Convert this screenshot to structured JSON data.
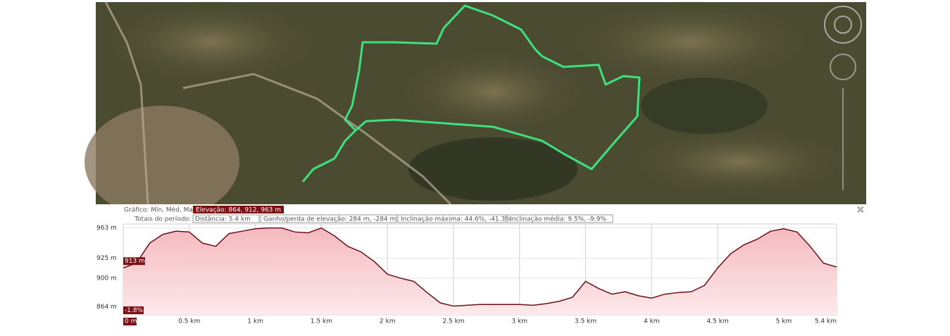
{
  "panel": {
    "chart_mode": "Gráfico: Mín, Méd, Max",
    "elevation": "Elevação: 864, 912, 963 m",
    "totals": "Totais do período:",
    "distance": "Distância: 5.4 km",
    "gain_loss": "Ganho/perda de elevação: 284 m, -284 m",
    "max_slope": "Inclinação máxima: 44.6%, -41.3%",
    "avg_slope": "Inclinação média: 9.5%, -9.9%",
    "close": "×"
  },
  "chart_data": {
    "type": "area",
    "x": [
      0,
      0.1,
      0.2,
      0.3,
      0.4,
      0.5,
      0.6,
      0.7,
      0.8,
      0.9,
      1.0,
      1.1,
      1.2,
      1.3,
      1.4,
      1.5,
      1.6,
      1.7,
      1.8,
      1.9,
      2.0,
      2.1,
      2.2,
      2.3,
      2.4,
      2.5,
      2.6,
      2.7,
      2.8,
      2.9,
      3.0,
      3.1,
      3.2,
      3.3,
      3.4,
      3.5,
      3.6,
      3.7,
      3.8,
      3.9,
      4.0,
      4.1,
      4.2,
      4.3,
      4.4,
      4.5,
      4.6,
      4.7,
      4.8,
      4.9,
      5.0,
      5.1,
      5.2,
      5.3,
      5.4
    ],
    "values": [
      913,
      919,
      944,
      955,
      959,
      958,
      944,
      940,
      956,
      959,
      962,
      963,
      963,
      958,
      957,
      963,
      953,
      940,
      933,
      921,
      905,
      900,
      896,
      882,
      869,
      865,
      866,
      867,
      867,
      867,
      867,
      866,
      868,
      871,
      876,
      896,
      887,
      880,
      883,
      878,
      875,
      880,
      882,
      883,
      891,
      913,
      931,
      942,
      949,
      959,
      962,
      958,
      940,
      919,
      914
    ],
    "color": "#6b0f16",
    "xlim": [
      0,
      5.4
    ],
    "xticks": [
      {
        "value": 0,
        "label": "0 m"
      },
      {
        "value": 0.5,
        "label": "0.5 km"
      },
      {
        "value": 1,
        "label": "1 km"
      },
      {
        "value": 1.5,
        "label": "1.5 km"
      },
      {
        "value": 2,
        "label": "2 km"
      },
      {
        "value": 2.5,
        "label": "2.5 km"
      },
      {
        "value": 3,
        "label": "3 km"
      },
      {
        "value": 3.5,
        "label": "3.5 km"
      },
      {
        "value": 4,
        "label": "4 km"
      },
      {
        "value": 4.5,
        "label": "4.5 km"
      },
      {
        "value": 5,
        "label": "5 km"
      },
      {
        "value": 5.4,
        "label": "5.4 km"
      }
    ],
    "ylim": [
      854,
      968
    ],
    "yticks": [
      {
        "value": 963,
        "label": "963 m"
      },
      {
        "value": 925,
        "label": "925 m"
      },
      {
        "value": 900,
        "label": "900 m"
      },
      {
        "value": 864,
        "label": "864 m"
      }
    ],
    "grid": true,
    "start_label": "913 m",
    "start_slope": "-1.8%"
  }
}
